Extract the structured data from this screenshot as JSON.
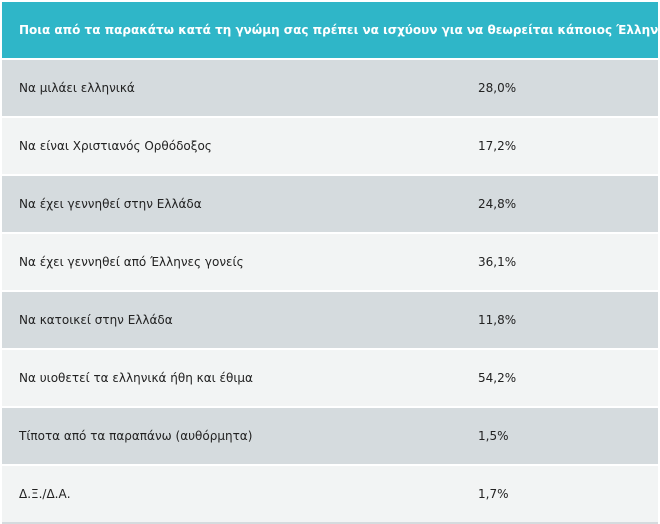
{
  "header": {
    "question": "Ποια από τα παρακάτω κατά τη γνώμη σας πρέπει να ισχύουν για να θεωρείται κάποιος Έλληνας ;"
  },
  "rows": [
    {
      "label": "Να μιλάει ελληνικά",
      "value": "28,0%"
    },
    {
      "label": "Να είναι Χριστιανός Ορθόδοξος",
      "value": "17,2%"
    },
    {
      "label": "Να έχει γεννηθεί στην Ελλάδα",
      "value": "24,8%"
    },
    {
      "label": "Να έχει γεννηθεί από Έλληνες γονείς",
      "value": "36,1%"
    },
    {
      "label": "Να κατοικεί στην Ελλάδα",
      "value": "11,8%"
    },
    {
      "label": "Να υιοθετεί τα ελληνικά ήθη και έθιμα",
      "value": "54,2%"
    },
    {
      "label": "Τίποτα από τα παραπάνω (αυθόρμητα)",
      "value": "1,5%"
    },
    {
      "label": "Δ.Ξ./Δ.Α.",
      "value": "1,7%"
    }
  ],
  "colors": {
    "header_bg": "#2fb6c8",
    "row_shade": "#d5dbde",
    "row_plain": "#f2f4f4"
  }
}
